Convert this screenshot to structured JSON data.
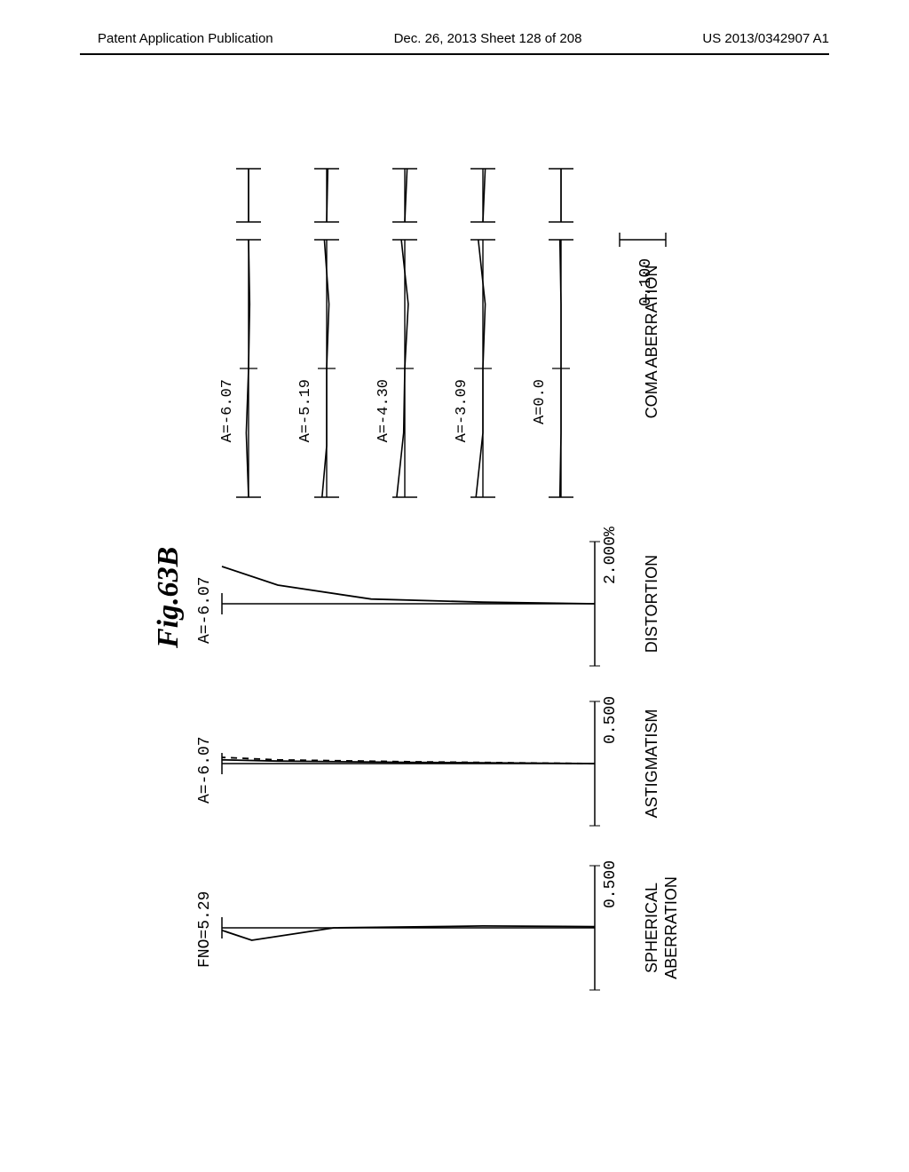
{
  "header": {
    "left": "Patent Application Publication",
    "center": "Dec. 26, 2013  Sheet 128 of 208",
    "right": "US 2013/0342907 A1"
  },
  "figure": {
    "title": "Fig.63B",
    "title_fontsize": 34,
    "title_fontstyle": "italic",
    "title_fontweight": "bold",
    "rotation": -90,
    "background_color": "#ffffff",
    "stroke_color": "#000000",
    "label_font": "Courier, monospace",
    "label_fontsize": 16,
    "panels": [
      {
        "name": "SPHERICAL ABERRATION",
        "header": "FNO=5.29",
        "xlim": [
          -0.5,
          0.5
        ],
        "xtick_label": "0.500",
        "type": "line",
        "curves": [
          {
            "style": "solid",
            "color": "#000000",
            "points": [
              [
                0.01,
                0
              ],
              [
                0.015,
                0.3
              ],
              [
                0.0,
                0.7
              ],
              [
                -0.1,
                0.92
              ],
              [
                -0.02,
                1.0
              ]
            ]
          }
        ]
      },
      {
        "name": "ASTIGMATISM",
        "header": "A=-6.07",
        "xlim": [
          -0.5,
          0.5
        ],
        "xtick_label": "0.500",
        "type": "line",
        "curves": [
          {
            "style": "solid",
            "color": "#000000",
            "points": [
              [
                0,
                0
              ],
              [
                0.01,
                0.5
              ],
              [
                0.02,
                0.85
              ],
              [
                0.03,
                1.0
              ]
            ]
          },
          {
            "style": "dashed",
            "color": "#000000",
            "points": [
              [
                0,
                0
              ],
              [
                0.015,
                0.5
              ],
              [
                0.03,
                0.85
              ],
              [
                0.05,
                1.0
              ]
            ]
          }
        ]
      },
      {
        "name": "DISTORTION",
        "header": "A=-6.07",
        "xlim": [
          -2.0,
          2.0
        ],
        "xtick_label": "2.000%",
        "type": "line",
        "curves": [
          {
            "style": "solid",
            "color": "#000000",
            "points": [
              [
                0,
                0
              ],
              [
                0.05,
                0.3
              ],
              [
                0.15,
                0.6
              ],
              [
                0.6,
                0.85
              ],
              [
                1.2,
                1.0
              ]
            ]
          }
        ]
      },
      {
        "name": "COMA ABERRATION",
        "type": "coma",
        "scale_label": "0.100",
        "ylim": [
          -0.1,
          0.1
        ],
        "fields": [
          {
            "label": "A=-6.07",
            "curve": [
              [
                -1,
                0.0
              ],
              [
                -0.5,
                0.01
              ],
              [
                0,
                0
              ],
              [
                0.5,
                -0.005
              ],
              [
                1,
                0.0
              ]
            ],
            "sag": [
              [
                0,
                0
              ],
              [
                1,
                0
              ]
            ]
          },
          {
            "label": "A=-5.19",
            "curve": [
              [
                -1,
                0.02
              ],
              [
                -0.6,
                0.0
              ],
              [
                0,
                0
              ],
              [
                0.5,
                -0.01
              ],
              [
                1,
                0.01
              ]
            ],
            "sag": [
              [
                0,
                0
              ],
              [
                1,
                -0.005
              ]
            ]
          },
          {
            "label": "A=-4.30",
            "curve": [
              [
                -1,
                0.035
              ],
              [
                -0.5,
                0.005
              ],
              [
                0,
                0
              ],
              [
                0.5,
                -0.015
              ],
              [
                1,
                0.015
              ]
            ],
            "sag": [
              [
                0,
                0
              ],
              [
                1,
                -0.01
              ]
            ]
          },
          {
            "label": "A=-3.09",
            "curve": [
              [
                -1,
                0.03
              ],
              [
                -0.5,
                0.0
              ],
              [
                0,
                0
              ],
              [
                0.5,
                -0.01
              ],
              [
                1,
                0.02
              ]
            ],
            "sag": [
              [
                0,
                0
              ],
              [
                1,
                -0.01
              ]
            ]
          },
          {
            "label": "A=0.0",
            "curve": [
              [
                -1,
                0.005
              ],
              [
                -0.5,
                0.0
              ],
              [
                0,
                0
              ],
              [
                0.5,
                0.0
              ],
              [
                1,
                0.005
              ]
            ],
            "sag": [
              [
                0,
                0
              ],
              [
                1,
                0
              ]
            ]
          }
        ]
      }
    ]
  }
}
